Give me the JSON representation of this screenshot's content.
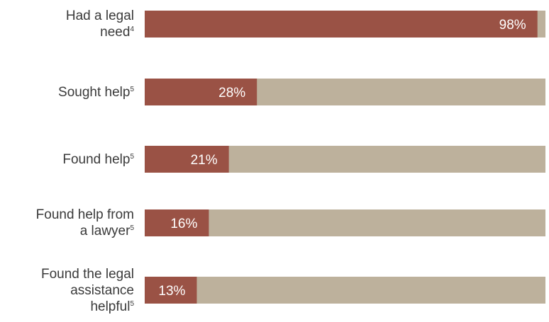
{
  "chart_data": {
    "type": "bar",
    "orientation": "horizontal",
    "stacked_to_total": true,
    "categories": [
      {
        "label_lines": [
          "Had a legal",
          "need"
        ],
        "footnote": "4"
      },
      {
        "label_lines": [
          "Sought help"
        ],
        "footnote": "5"
      },
      {
        "label_lines": [
          "Found help"
        ],
        "footnote": "5"
      },
      {
        "label_lines": [
          "Found help from",
          "a lawyer"
        ],
        "footnote": "5"
      },
      {
        "label_lines": [
          "Found the legal",
          "assistance",
          "helpful"
        ],
        "footnote": "5"
      }
    ],
    "values": [
      98,
      28,
      21,
      16,
      13
    ],
    "value_labels": [
      "98%",
      "28%",
      "21%",
      "16%",
      "13%"
    ],
    "total": 100,
    "xlim": [
      0,
      100
    ],
    "grid": false,
    "legend": "none"
  },
  "colors": {
    "bar_fill": "#9a5245",
    "bar_remainder": "#bdb19c",
    "value_text": "#ffffff",
    "label_text": "#3a3a3a"
  }
}
